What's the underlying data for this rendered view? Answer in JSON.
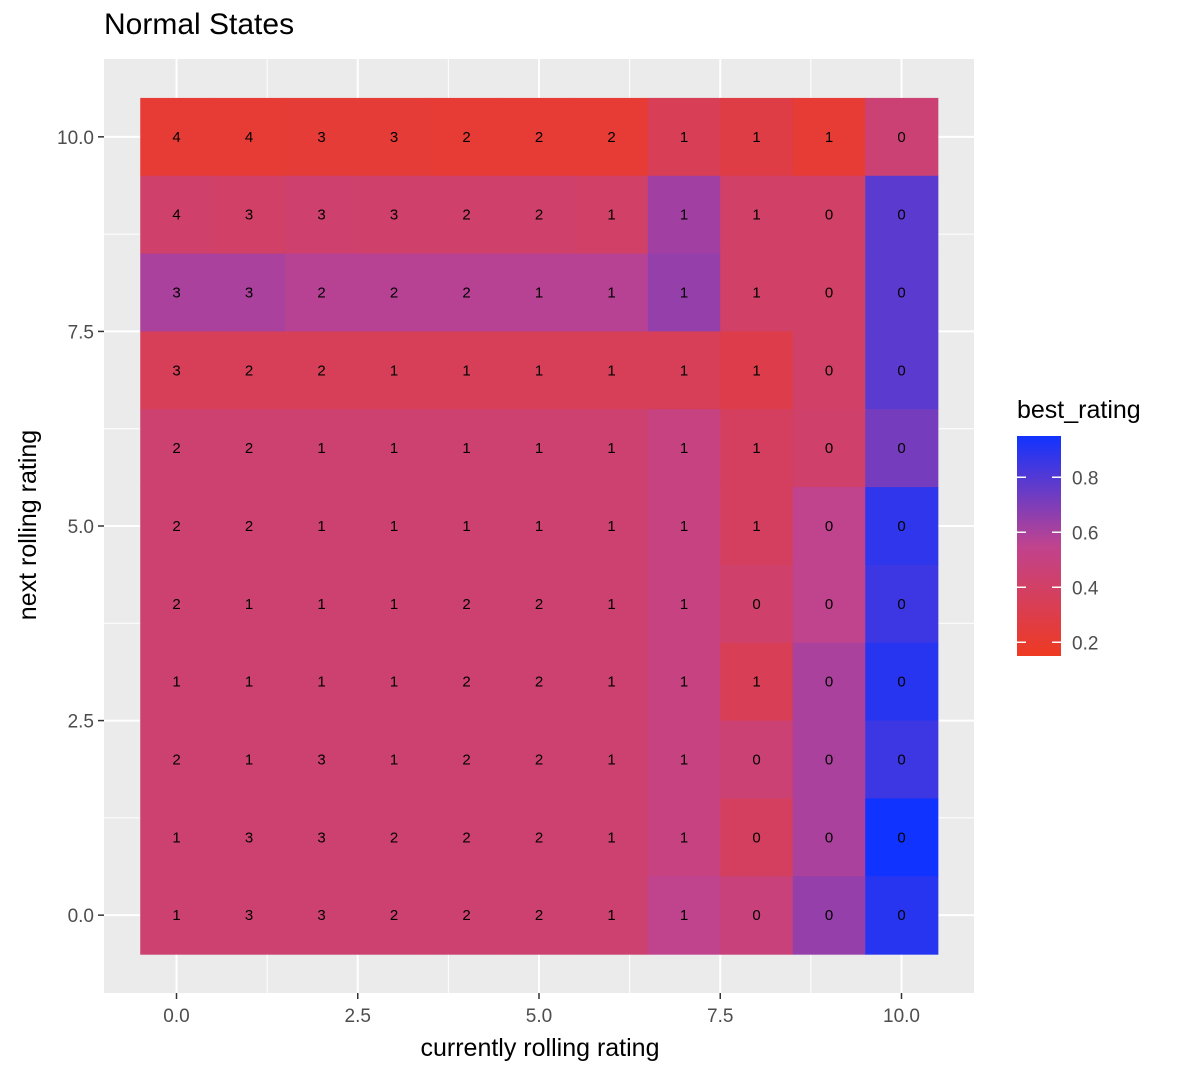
{
  "chart_data": {
    "type": "heatmap",
    "title": "Normal States",
    "xlabel": "currently rolling rating",
    "ylabel": "next rolling rating",
    "xlim": [
      -1,
      11
    ],
    "ylim": [
      -1,
      11
    ],
    "x_ticks": [
      0,
      2.5,
      5,
      7.5,
      10
    ],
    "x_tick_labels": [
      "0.0",
      "2.5",
      "5.0",
      "7.5",
      "10.0"
    ],
    "y_ticks": [
      0,
      2.5,
      5,
      7.5,
      10
    ],
    "y_tick_labels": [
      "0.0",
      "2.5",
      "5.0",
      "7.5",
      "10.0"
    ],
    "x": [
      0,
      1,
      2,
      3,
      4,
      5,
      6,
      7,
      8,
      9,
      10
    ],
    "y": [
      0,
      1,
      2,
      3,
      4,
      5,
      6,
      7,
      8,
      9,
      10
    ],
    "fill_rows_top_to_bottom": [
      [
        0.22,
        0.22,
        0.23,
        0.23,
        0.22,
        0.22,
        0.22,
        0.34,
        0.28,
        0.22,
        0.45
      ],
      [
        0.42,
        0.4,
        0.43,
        0.42,
        0.42,
        0.42,
        0.4,
        0.62,
        0.4,
        0.4,
        0.78
      ],
      [
        0.6,
        0.6,
        0.57,
        0.57,
        0.57,
        0.57,
        0.57,
        0.65,
        0.4,
        0.4,
        0.78
      ],
      [
        0.35,
        0.35,
        0.35,
        0.35,
        0.35,
        0.35,
        0.35,
        0.35,
        0.3,
        0.4,
        0.78
      ],
      [
        0.44,
        0.44,
        0.44,
        0.44,
        0.44,
        0.44,
        0.44,
        0.5,
        0.38,
        0.42,
        0.72
      ],
      [
        0.44,
        0.44,
        0.44,
        0.44,
        0.44,
        0.44,
        0.44,
        0.5,
        0.38,
        0.55,
        0.88
      ],
      [
        0.44,
        0.44,
        0.44,
        0.44,
        0.44,
        0.44,
        0.44,
        0.5,
        0.42,
        0.55,
        0.85
      ],
      [
        0.44,
        0.44,
        0.44,
        0.44,
        0.44,
        0.44,
        0.44,
        0.5,
        0.34,
        0.6,
        0.9
      ],
      [
        0.44,
        0.44,
        0.44,
        0.44,
        0.44,
        0.44,
        0.44,
        0.5,
        0.45,
        0.6,
        0.85
      ],
      [
        0.44,
        0.44,
        0.44,
        0.44,
        0.44,
        0.44,
        0.44,
        0.5,
        0.38,
        0.6,
        0.96
      ],
      [
        0.44,
        0.44,
        0.44,
        0.44,
        0.44,
        0.44,
        0.44,
        0.55,
        0.48,
        0.65,
        0.9
      ]
    ],
    "label_rows_top_to_bottom": [
      [
        "4",
        "4",
        "3",
        "3",
        "2",
        "2",
        "2",
        "1",
        "1",
        "1",
        "0"
      ],
      [
        "4",
        "3",
        "3",
        "3",
        "2",
        "2",
        "1",
        "1",
        "1",
        "0",
        "0"
      ],
      [
        "3",
        "3",
        "2",
        "2",
        "2",
        "1",
        "1",
        "1",
        "1",
        "0",
        "0"
      ],
      [
        "3",
        "2",
        "2",
        "1",
        "1",
        "1",
        "1",
        "1",
        "1",
        "0",
        "0"
      ],
      [
        "2",
        "2",
        "1",
        "1",
        "1",
        "1",
        "1",
        "1",
        "1",
        "0",
        "0"
      ],
      [
        "2",
        "2",
        "1",
        "1",
        "1",
        "1",
        "1",
        "1",
        "1",
        "0",
        "0"
      ],
      [
        "2",
        "1",
        "1",
        "1",
        "2",
        "2",
        "1",
        "1",
        "0",
        "0",
        "0"
      ],
      [
        "1",
        "1",
        "1",
        "1",
        "2",
        "2",
        "1",
        "1",
        "1",
        "0",
        "0"
      ],
      [
        "2",
        "1",
        "3",
        "1",
        "2",
        "2",
        "1",
        "1",
        "0",
        "0",
        "0"
      ],
      [
        "1",
        "3",
        "3",
        "2",
        "2",
        "2",
        "1",
        "1",
        "0",
        "0",
        "0"
      ],
      [
        "1",
        "3",
        "3",
        "2",
        "2",
        "2",
        "1",
        "1",
        "0",
        "0",
        "0"
      ]
    ],
    "legend": {
      "title": "best_rating",
      "position": "right",
      "range": [
        0.15,
        0.95
      ],
      "ticks": [
        0.8,
        0.6,
        0.4,
        0.2
      ],
      "tick_labels": [
        "0.8",
        "0.6",
        "0.4",
        "0.2"
      ],
      "low_color": "#ee3a22",
      "high_color": "#1133ff"
    },
    "panel_background": "#ebebeb",
    "grid": true,
    "grid_color": "#ffffff"
  }
}
